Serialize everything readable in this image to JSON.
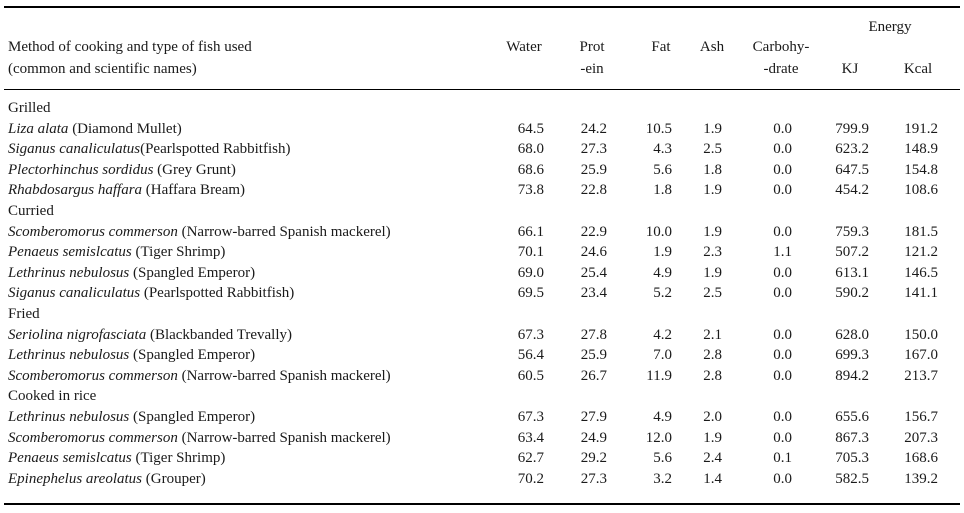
{
  "header": {
    "method_line1": "Method of cooking and type of fish used",
    "method_line2": "(common and scientific names)",
    "water": "Water",
    "protein_line1": "Prot",
    "protein_line2": "-ein",
    "fat": "Fat",
    "ash": "Ash",
    "carb_line1": "Carbohy-",
    "carb_line2": "-drate",
    "energy": "Energy",
    "kj": "KJ",
    "kcal": "Kcal"
  },
  "rows": [
    {
      "type": "group",
      "label": "Grilled"
    },
    {
      "type": "item",
      "sci": "Liza alata",
      "common": " (Diamond Mullet)",
      "water": "64.5",
      "protein": "24.2",
      "fat": "10.5",
      "ash": "1.9",
      "carb": "0.0",
      "kj": "799.9",
      "kcal": "191.2"
    },
    {
      "type": "item",
      "sci": "Siganus canaliculatus",
      "common": "(Pearlspotted Rabbitfish)",
      "water": "68.0",
      "protein": "27.3",
      "fat": "4.3",
      "ash": "2.5",
      "carb": "0.0",
      "kj": "623.2",
      "kcal": "148.9"
    },
    {
      "type": "item",
      "sci": "Plectorhinchus sordidus",
      "common": " (Grey Grunt)",
      "water": "68.6",
      "protein": "25.9",
      "fat": "5.6",
      "ash": "1.8",
      "carb": "0.0",
      "kj": "647.5",
      "kcal": "154.8"
    },
    {
      "type": "item",
      "sci": "Rhabdosargus haffara",
      "common": " (Haffara Bream)",
      "water": "73.8",
      "protein": "22.8",
      "fat": "1.8",
      "ash": "1.9",
      "carb": "0.0",
      "kj": "454.2",
      "kcal": "108.6"
    },
    {
      "type": "group",
      "label": "Curried"
    },
    {
      "type": "item",
      "sci": "Scomberomorus commerson",
      "common": " (Narrow-barred Spanish mackerel)",
      "water": "66.1",
      "protein": "22.9",
      "fat": "10.0",
      "ash": "1.9",
      "carb": "0.0",
      "kj": "759.3",
      "kcal": "181.5"
    },
    {
      "type": "item",
      "sci": "Penaeus semislcatus",
      "common": " (Tiger Shrimp)",
      "water": "70.1",
      "protein": "24.6",
      "fat": "1.9",
      "ash": "2.3",
      "carb": "1.1",
      "kj": "507.2",
      "kcal": "121.2"
    },
    {
      "type": "item",
      "sci": "Lethrinus nebulosus",
      "common": " (Spangled Emperor)",
      "water": "69.0",
      "protein": "25.4",
      "fat": "4.9",
      "ash": "1.9",
      "carb": "0.0",
      "kj": "613.1",
      "kcal": "146.5"
    },
    {
      "type": "item",
      "sci": "Siganus canaliculatus",
      "common": " (Pearlspotted Rabbitfish)",
      "water": "69.5",
      "protein": "23.4",
      "fat": "5.2",
      "ash": "2.5",
      "carb": "0.0",
      "kj": "590.2",
      "kcal": "141.1"
    },
    {
      "type": "group",
      "label": "Fried"
    },
    {
      "type": "item",
      "sci": "Seriolina nigrofasciata",
      "common": " (Blackbanded Trevally)",
      "water": "67.3",
      "protein": "27.8",
      "fat": "4.2",
      "ash": "2.1",
      "carb": "0.0",
      "kj": "628.0",
      "kcal": "150.0"
    },
    {
      "type": "item",
      "sci": "Lethrinus nebulosus",
      "common": " (Spangled Emperor)",
      "water": "56.4",
      "protein": "25.9",
      "fat": "7.0",
      "ash": "2.8",
      "carb": "0.0",
      "kj": "699.3",
      "kcal": "167.0"
    },
    {
      "type": "item",
      "sci": "Scomberomorus commerson",
      "common": " (Narrow-barred Spanish mackerel)",
      "water": "60.5",
      "protein": "26.7",
      "fat": "11.9",
      "ash": "2.8",
      "carb": "0.0",
      "kj": "894.2",
      "kcal": "213.7"
    },
    {
      "type": "group",
      "label": "Cooked in rice"
    },
    {
      "type": "item",
      "sci": "Lethrinus nebulosus",
      "common": " (Spangled Emperor)",
      "water": "67.3",
      "protein": "27.9",
      "fat": "4.9",
      "ash": "2.0",
      "carb": "0.0",
      "kj": "655.6",
      "kcal": "156.7"
    },
    {
      "type": "item",
      "sci": "Scomberomorus commerson",
      "common": " (Narrow-barred Spanish mackerel)",
      "water": "63.4",
      "protein": "24.9",
      "fat": "12.0",
      "ash": "1.9",
      "carb": "0.0",
      "kj": "867.3",
      "kcal": "207.3"
    },
    {
      "type": "item",
      "sci": "Penaeus semislcatus",
      "common": " (Tiger Shrimp)",
      "water": "62.7",
      "protein": "29.2",
      "fat": "5.6",
      "ash": "2.4",
      "carb": "0.1",
      "kj": "705.3",
      "kcal": "168.6"
    },
    {
      "type": "item",
      "sci": "Epinephelus areolatus",
      "common": " (Grouper)",
      "water": "70.2",
      "protein": "27.3",
      "fat": "3.2",
      "ash": "1.4",
      "carb": "0.0",
      "kj": "582.5",
      "kcal": "139.2"
    }
  ]
}
